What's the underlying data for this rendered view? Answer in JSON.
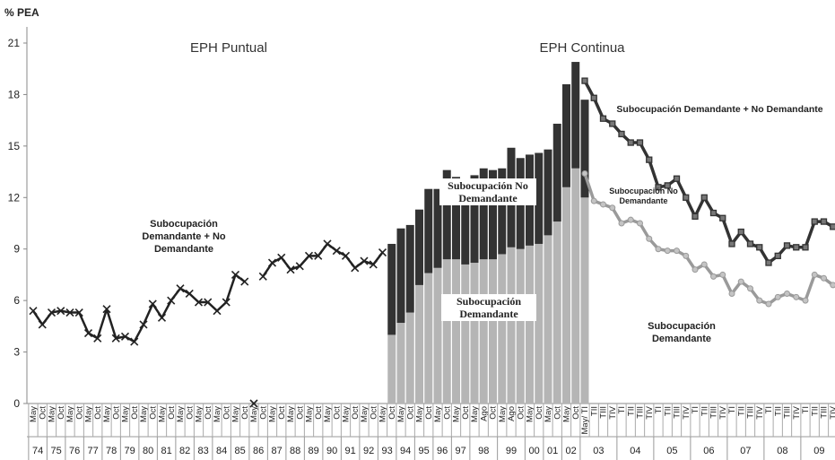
{
  "chart_data": {
    "type": "combo",
    "y_label": "% PEA",
    "ylim": [
      0,
      21
    ],
    "yticks": [
      0,
      3,
      6,
      9,
      12,
      15,
      18,
      21
    ],
    "groups": [
      {
        "label": "74",
        "categories": [
          "May",
          "Oct"
        ]
      },
      {
        "label": "75",
        "categories": [
          "May",
          "Oct"
        ]
      },
      {
        "label": "76",
        "categories": [
          "May",
          "Oct"
        ]
      },
      {
        "label": "77",
        "categories": [
          "May",
          "Oct"
        ]
      },
      {
        "label": "78",
        "categories": [
          "May",
          "Oct"
        ]
      },
      {
        "label": "79",
        "categories": [
          "May",
          "Oct"
        ]
      },
      {
        "label": "80",
        "categories": [
          "May",
          "Oct"
        ]
      },
      {
        "label": "81",
        "categories": [
          "May",
          "Oct"
        ]
      },
      {
        "label": "82",
        "categories": [
          "May",
          "Oct"
        ]
      },
      {
        "label": "83",
        "categories": [
          "May",
          "Oct"
        ]
      },
      {
        "label": "84",
        "categories": [
          "May",
          "Oct"
        ]
      },
      {
        "label": "85",
        "categories": [
          "May",
          "Oct"
        ]
      },
      {
        "label": "86",
        "categories": [
          "May",
          "Oct"
        ]
      },
      {
        "label": "87",
        "categories": [
          "May",
          "Oct"
        ]
      },
      {
        "label": "88",
        "categories": [
          "May",
          "Oct"
        ]
      },
      {
        "label": "89",
        "categories": [
          "May",
          "Oct"
        ]
      },
      {
        "label": "90",
        "categories": [
          "May",
          "Oct"
        ]
      },
      {
        "label": "91",
        "categories": [
          "May",
          "Oct"
        ]
      },
      {
        "label": "92",
        "categories": [
          "May",
          "Oct"
        ]
      },
      {
        "label": "93",
        "categories": [
          "May",
          "Oct"
        ]
      },
      {
        "label": "94",
        "categories": [
          "May",
          "Oct"
        ]
      },
      {
        "label": "95",
        "categories": [
          "May",
          "Oct"
        ]
      },
      {
        "label": "96",
        "categories": [
          "May",
          "Oct"
        ]
      },
      {
        "label": "97",
        "categories": [
          "May",
          "Oct"
        ]
      },
      {
        "label": "98",
        "categories": [
          "May",
          "Ago",
          "Oct"
        ]
      },
      {
        "label": "99",
        "categories": [
          "May",
          "Ago",
          "Oct"
        ]
      },
      {
        "label": "00",
        "categories": [
          "May",
          "Oct"
        ]
      },
      {
        "label": "01",
        "categories": [
          "May",
          "Oct"
        ]
      },
      {
        "label": "02",
        "categories": [
          "May",
          "Oct"
        ]
      },
      {
        "label": "03",
        "categories": [
          "May/ TI",
          "TII",
          "TIII",
          "TIV"
        ]
      },
      {
        "label": "04",
        "categories": [
          "TI",
          "TII",
          "TIII",
          "TIV"
        ]
      },
      {
        "label": "05",
        "categories": [
          "TI",
          "TII",
          "TIII",
          "TIV"
        ]
      },
      {
        "label": "06",
        "categories": [
          "TI",
          "TII",
          "TIII",
          "TIV"
        ]
      },
      {
        "label": "07",
        "categories": [
          "TI",
          "TII",
          "TIII",
          "TIV"
        ]
      },
      {
        "label": "08",
        "categories": [
          "TI",
          "TII",
          "TIII",
          "TIV"
        ]
      },
      {
        "label": "09",
        "categories": [
          "TI",
          "TII",
          "TIII",
          "TIV"
        ]
      }
    ],
    "series": [
      {
        "name": "Subocupación Demandante + No Demandante",
        "kind": "line",
        "marker": "x",
        "color": "#222",
        "values": [
          5.4,
          4.6,
          5.3,
          5.4,
          5.3,
          5.3,
          4.1,
          3.8,
          5.5,
          3.8,
          3.9,
          3.6,
          4.6,
          5.8,
          5.0,
          6.0,
          6.7,
          6.4,
          5.9,
          5.9,
          5.4,
          5.9,
          7.5,
          7.1,
          null,
          7.4,
          8.2,
          8.5,
          7.8,
          8.0,
          8.6,
          8.6,
          9.3,
          8.9,
          8.6,
          7.9,
          8.3,
          8.1,
          8.8,
          null,
          null,
          null,
          null,
          null,
          null,
          null,
          null,
          null,
          null,
          null,
          null,
          null,
          null,
          null,
          null,
          null,
          null,
          null,
          null,
          null,
          null,
          null,
          null,
          null,
          null,
          null,
          null,
          null,
          null,
          null,
          null,
          null,
          null,
          null,
          null,
          null,
          null,
          null,
          null,
          null,
          null,
          null,
          null,
          null,
          null,
          null,
          null,
          null
        ]
      },
      {
        "kind": "line",
        "marker": "x",
        "color": "#222",
        "values": [
          null,
          null,
          null,
          null,
          null,
          null,
          null,
          null,
          null,
          null,
          null,
          null,
          null,
          null,
          null,
          null,
          null,
          null,
          null,
          null,
          null,
          null,
          null,
          null,
          0,
          null,
          null,
          null,
          null,
          null,
          null,
          null,
          null,
          null,
          null,
          null,
          null,
          null,
          null,
          null,
          null,
          null,
          null,
          null,
          null,
          null,
          null,
          null,
          null,
          null,
          null,
          null,
          null,
          null,
          null,
          null,
          null,
          null,
          null,
          null,
          null,
          null,
          null,
          null,
          null,
          null,
          null,
          null,
          null,
          null,
          null,
          null,
          null,
          null,
          null,
          null,
          null,
          null,
          null,
          null,
          null,
          null,
          null,
          null,
          null,
          null,
          null,
          null
        ]
      },
      {
        "name": "Subocupación Demandante",
        "kind": "bar",
        "color": "#b5b5b5",
        "values": [
          null,
          null,
          null,
          null,
          null,
          null,
          null,
          null,
          null,
          null,
          null,
          null,
          null,
          null,
          null,
          null,
          null,
          null,
          null,
          null,
          null,
          null,
          null,
          null,
          null,
          null,
          null,
          null,
          null,
          null,
          null,
          null,
          null,
          null,
          null,
          null,
          null,
          null,
          null,
          4.0,
          4.7,
          5.3,
          6.9,
          7.6,
          7.9,
          8.4,
          8.4,
          8.1,
          8.2,
          8.4,
          8.4,
          8.7,
          9.1,
          9.0,
          9.2,
          9.3,
          9.8,
          10.6,
          12.6,
          13.7,
          12.0,
          null,
          null,
          null,
          null,
          null,
          null,
          null,
          null,
          null,
          null,
          null,
          null,
          null,
          null,
          null,
          null,
          null,
          null,
          null,
          null,
          null,
          null,
          null,
          null,
          null,
          null,
          null
        ]
      },
      {
        "name": "Subocupación No Demandante",
        "kind": "bar",
        "color": "#333333",
        "values": [
          null,
          null,
          null,
          null,
          null,
          null,
          null,
          null,
          null,
          null,
          null,
          null,
          null,
          null,
          null,
          null,
          null,
          null,
          null,
          null,
          null,
          null,
          null,
          null,
          null,
          null,
          null,
          null,
          null,
          null,
          null,
          null,
          null,
          null,
          null,
          null,
          null,
          null,
          null,
          5.3,
          5.5,
          5.1,
          4.4,
          4.9,
          4.6,
          5.2,
          4.8,
          5.0,
          5.1,
          5.3,
          5.2,
          5.0,
          5.8,
          5.3,
          5.3,
          5.3,
          5.0,
          5.7,
          6.0,
          6.2,
          5.7,
          null,
          null,
          null,
          null,
          null,
          null,
          null,
          null,
          null,
          null,
          null,
          null,
          null,
          null,
          null,
          null,
          null,
          null,
          null,
          null,
          null,
          null,
          null,
          null,
          null,
          null,
          null
        ]
      },
      {
        "name": "Subocupación Demandante + No Demandante",
        "kind": "line",
        "marker": "square",
        "color": "#333",
        "values": [
          null,
          null,
          null,
          null,
          null,
          null,
          null,
          null,
          null,
          null,
          null,
          null,
          null,
          null,
          null,
          null,
          null,
          null,
          null,
          null,
          null,
          null,
          null,
          null,
          null,
          null,
          null,
          null,
          null,
          null,
          null,
          null,
          null,
          null,
          null,
          null,
          null,
          null,
          null,
          null,
          null,
          null,
          null,
          null,
          null,
          null,
          null,
          null,
          null,
          null,
          null,
          null,
          null,
          null,
          null,
          null,
          null,
          null,
          null,
          null,
          18.8,
          17.8,
          16.6,
          16.3,
          15.7,
          15.2,
          15.2,
          14.2,
          12.6,
          12.7,
          13.1,
          12.0,
          10.9,
          12.0,
          11.1,
          10.8,
          9.3,
          10.0,
          9.3,
          9.1,
          8.2,
          8.6,
          9.2,
          9.1,
          9.1,
          10.6,
          10.6,
          10.3
        ]
      },
      {
        "name": "Subocupación Demandante",
        "kind": "line",
        "marker": "circle",
        "color": "#9a9a9a",
        "values": [
          null,
          null,
          null,
          null,
          null,
          null,
          null,
          null,
          null,
          null,
          null,
          null,
          null,
          null,
          null,
          null,
          null,
          null,
          null,
          null,
          null,
          null,
          null,
          null,
          null,
          null,
          null,
          null,
          null,
          null,
          null,
          null,
          null,
          null,
          null,
          null,
          null,
          null,
          null,
          null,
          null,
          null,
          null,
          null,
          null,
          null,
          null,
          null,
          null,
          null,
          null,
          null,
          null,
          null,
          null,
          null,
          null,
          null,
          null,
          null,
          13.4,
          11.8,
          11.6,
          11.4,
          10.5,
          10.7,
          10.5,
          9.6,
          9.0,
          8.9,
          8.9,
          8.6,
          7.8,
          8.1,
          7.4,
          7.5,
          6.4,
          7.1,
          6.7,
          6.0,
          5.8,
          6.2,
          6.4,
          6.2,
          6.0,
          7.5,
          7.3,
          6.9
        ]
      }
    ],
    "annotations": [
      "EPH Puntual",
      "EPH Continua",
      "Subocupación No Demandante"
    ]
  }
}
